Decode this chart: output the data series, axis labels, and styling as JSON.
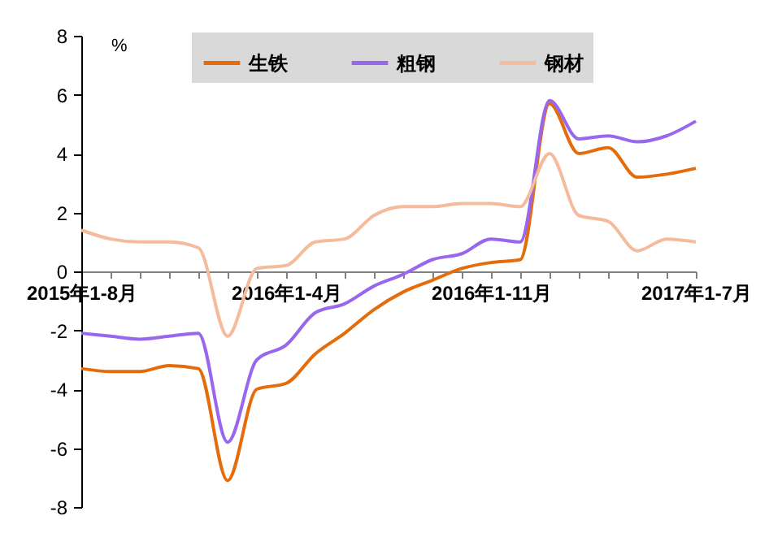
{
  "chart_data": {
    "type": "line",
    "ylabel": "%",
    "categories": [
      "2015年1-8月",
      null,
      null,
      null,
      null,
      null,
      null,
      "2016年1-4月",
      null,
      null,
      null,
      null,
      null,
      null,
      "2016年1-11月",
      null,
      null,
      null,
      null,
      null,
      null,
      "2017年1-7月"
    ],
    "series": [
      {
        "name": "生铁",
        "color": "#e46c0a",
        "values": [
          -3.3,
          -3.4,
          -3.4,
          -3.2,
          -3.3,
          -7.1,
          -4.0,
          -3.8,
          -2.8,
          -2.1,
          -1.3,
          -0.7,
          -0.3,
          0.1,
          0.3,
          0.4,
          5.7,
          4.0,
          4.2,
          3.2,
          3.3,
          3.5
        ]
      },
      {
        "name": "粗钢",
        "color": "#9966ee",
        "values": [
          -2.1,
          -2.2,
          -2.3,
          -2.2,
          -2.1,
          -5.8,
          -3.0,
          -2.5,
          -1.4,
          -1.1,
          -0.5,
          -0.1,
          0.4,
          0.6,
          1.1,
          1.0,
          5.8,
          4.5,
          4.6,
          4.4,
          4.6,
          5.1
        ]
      },
      {
        "name": "钢材",
        "color": "#f4bb9c",
        "values": [
          1.4,
          1.1,
          1.0,
          1.0,
          0.8,
          -2.2,
          0.1,
          0.2,
          1.0,
          1.1,
          1.9,
          2.2,
          2.2,
          2.3,
          2.3,
          2.2,
          4.0,
          1.9,
          1.7,
          0.7,
          1.1,
          1.0
        ]
      }
    ],
    "ylim": [
      -8,
      8
    ],
    "yticks": [
      -8,
      -6,
      -4,
      -2,
      0,
      2,
      4,
      6,
      8
    ],
    "grid": false,
    "legend": "top",
    "marker": "none",
    "line_style": "solid"
  }
}
